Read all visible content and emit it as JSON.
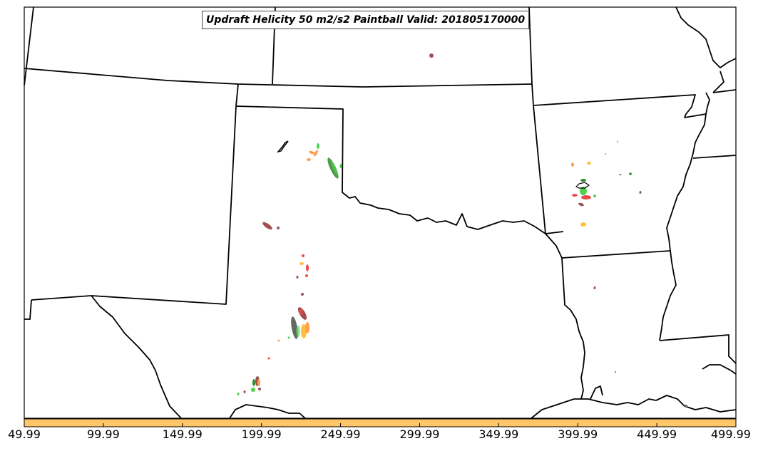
{
  "map": {
    "title": "Updraft Helicity 50 m2/s2 Paintball Valid: 201805170000",
    "colorbar": {
      "color": "#FFC66A",
      "tick_labels": [
        "49.99",
        "99.99",
        "149.99",
        "199.99",
        "249.99",
        "299.99",
        "349.99",
        "399.99",
        "449.99",
        "499.99"
      ],
      "range": [
        49.99,
        499.99
      ]
    },
    "colors": {
      "boundaries": "#000000",
      "paintball_palette": [
        "#e84a4a",
        "#ffa050",
        "#ffc040",
        "#4cd34c",
        "#2e8b2e",
        "#a05050",
        "#666666"
      ]
    }
  }
}
